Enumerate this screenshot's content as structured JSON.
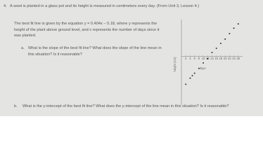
{
  "problem": {
    "number": "4.",
    "intro": "A seed is planted in a glass pot and its height is measured in centimeters every day. (From Unit 3, Lesson 4.)",
    "context": "The best fit line is given by the equation y = 0.404x − 5.18, where y represents the height of the plant above ground level, and x represents the number of days since it was planted.",
    "parts": [
      {
        "label": "a.",
        "question": "What is the slope of the best fit line? What does the slope of the line mean in this situation? Is it reasonable?"
      },
      {
        "label": "b.",
        "question": "What is the y-intercept of the best fit line? What does the y-intercept of the line mean in this situation? Is it reasonable?"
      }
    ]
  },
  "figure": {
    "type": "scatter",
    "x_label": "days",
    "y_label": "height (cm)",
    "x": [
      2,
      4,
      5,
      6,
      8,
      10,
      12,
      14,
      16,
      18,
      20,
      22,
      24,
      26
    ],
    "values": [
      -4.6,
      -3.6,
      -3.2,
      -2.8,
      -2.0,
      -1.1,
      -0.4,
      0.6,
      1.3,
      2.1,
      2.8,
      3.7,
      4.6,
      5.3
    ],
    "color": "#333333",
    "xlim": [
      0,
      28
    ],
    "ylim": [
      -8,
      6
    ],
    "xticks": [
      2,
      4,
      6,
      8,
      10,
      12,
      14,
      16,
      18,
      20,
      22,
      24,
      26
    ]
  }
}
